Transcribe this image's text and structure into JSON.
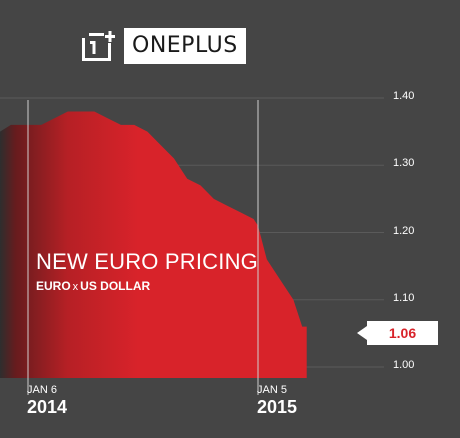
{
  "brand": {
    "name": "ONEPLUS",
    "logo_icon": "oneplus-logo-icon"
  },
  "headline": "NEW EURO PRICING",
  "subhead": {
    "left": "EURO",
    "sep": "x",
    "right": "US DOLLAR"
  },
  "callout": {
    "value": "1.06"
  },
  "colors": {
    "background": "#454545",
    "area": "#d8232a",
    "accent": "#d8232a"
  },
  "chart_data": {
    "type": "area",
    "title": "NEW EURO PRICING",
    "subtitle": "EURO x US DOLLAR",
    "xlabel": "",
    "ylabel": "",
    "ylim": [
      0.98,
      1.4
    ],
    "yticks": [
      "1.40",
      "1.30",
      "1.20",
      "1.10",
      "1.00"
    ],
    "xticks": [
      {
        "month": "JAN 6",
        "year": "2014",
        "x": "2014-01-06"
      },
      {
        "month": "JAN 5",
        "year": "2015",
        "x": "2015-01-05"
      }
    ],
    "grid": true,
    "current_value": 1.06,
    "series": [
      {
        "x": [
          "2013-11-20",
          "2013-12-10",
          "2014-01-06",
          "2014-01-27",
          "2014-02-17",
          "2014-03-10",
          "2014-03-31",
          "2014-04-21",
          "2014-05-12",
          "2014-06-02",
          "2014-06-23",
          "2014-07-14",
          "2014-08-04",
          "2014-08-25",
          "2014-09-15",
          "2014-10-06",
          "2014-10-27",
          "2014-11-17",
          "2014-12-08",
          "2014-12-29",
          "2015-01-05",
          "2015-01-19",
          "2015-02-09",
          "2015-03-02",
          "2015-03-16",
          "2015-03-23"
        ],
        "values": [
          1.35,
          1.36,
          1.36,
          1.36,
          1.37,
          1.38,
          1.38,
          1.38,
          1.37,
          1.36,
          1.36,
          1.35,
          1.33,
          1.31,
          1.28,
          1.27,
          1.25,
          1.24,
          1.23,
          1.22,
          1.21,
          1.16,
          1.13,
          1.1,
          1.06,
          1.06
        ]
      }
    ]
  }
}
